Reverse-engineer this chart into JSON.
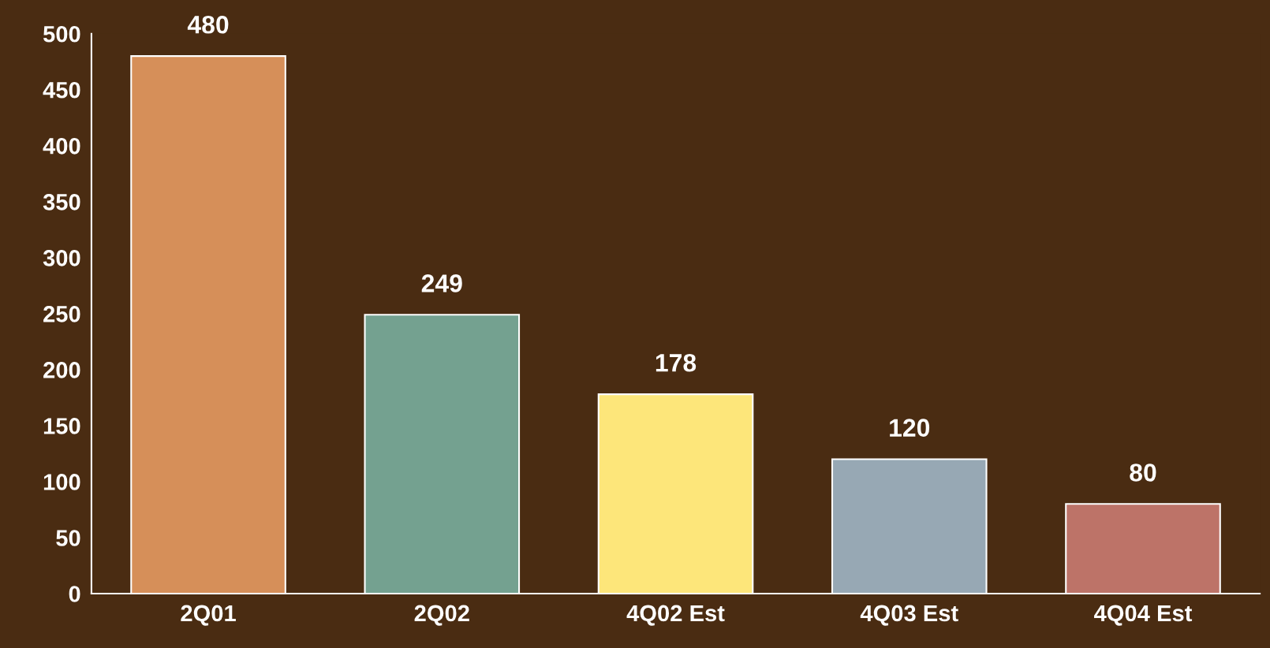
{
  "chart_data": {
    "type": "bar",
    "categories": [
      "2Q01",
      "2Q02",
      "4Q02 Est",
      "4Q03 Est",
      "4Q04 Est"
    ],
    "values": [
      480,
      249,
      178,
      120,
      80
    ],
    "colors": [
      "#d68f59",
      "#74a190",
      "#fde67a",
      "#97a8b4",
      "#bd7368"
    ],
    "ylim": [
      0,
      500
    ],
    "yticks": [
      0,
      50,
      100,
      150,
      200,
      250,
      300,
      350,
      400,
      450,
      500
    ],
    "data_labels": true,
    "grid": false,
    "legend": false
  }
}
